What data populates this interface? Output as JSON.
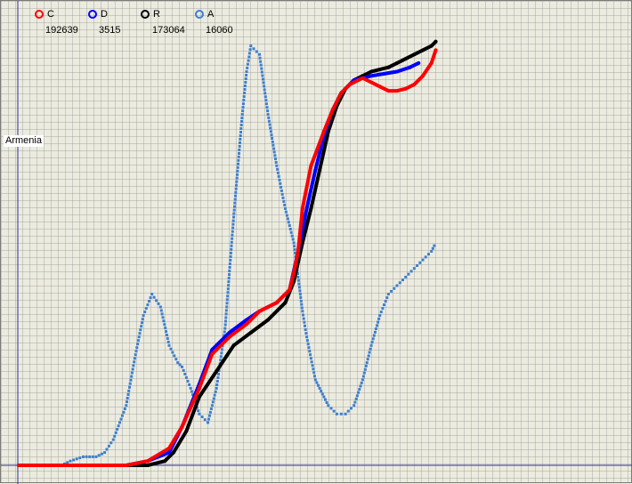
{
  "chart_data": {
    "type": "line",
    "country_label": "Armenia",
    "xlim": [
      0,
      100
    ],
    "ylim": [
      0,
      100
    ],
    "grid": true,
    "legend_placement": "top-left",
    "series": [
      {
        "name": "C",
        "value_label": "192639",
        "color": "#ff0000",
        "x": [
          0,
          12,
          25,
          30,
          35,
          38,
          42,
          45,
          49,
          53,
          56,
          60,
          63,
          64,
          65,
          66,
          68,
          71,
          73,
          75,
          77,
          79,
          80,
          82,
          84,
          86,
          88,
          90,
          92,
          94,
          96,
          97
        ],
        "y": [
          0,
          0,
          0,
          1,
          4,
          9,
          18,
          26,
          30,
          33,
          36,
          38,
          41,
          45,
          50,
          60,
          70,
          78,
          83,
          87,
          89,
          90,
          90.5,
          89.5,
          88.5,
          87.5,
          87.5,
          88,
          89,
          91,
          94,
          97
        ]
      },
      {
        "name": "D",
        "value_label": "3515",
        "color": "#0000ff",
        "x": [
          0,
          12,
          25,
          30,
          35,
          38,
          42,
          45,
          49,
          53,
          56,
          60,
          63,
          65,
          67,
          69,
          71,
          73,
          75,
          77,
          78,
          80,
          82,
          85,
          88,
          91,
          93
        ],
        "y": [
          0,
          0,
          0,
          1,
          3,
          9,
          19,
          27,
          31,
          34,
          36,
          38,
          41,
          50,
          60,
          69,
          77,
          83,
          87,
          89,
          90,
          90.5,
          91,
          91.5,
          92,
          93,
          94
        ]
      },
      {
        "name": "R",
        "value_label": "173064",
        "color": "#000000",
        "x": [
          0,
          12,
          25,
          30,
          34,
          36,
          39,
          42,
          46,
          50,
          54,
          58,
          62,
          64,
          66,
          68,
          70,
          72,
          74,
          76,
          78,
          80,
          82,
          84,
          86,
          88,
          90,
          92,
          94,
          96,
          97
        ],
        "y": [
          0,
          0,
          0,
          0,
          1,
          3,
          8,
          16,
          22,
          28,
          31,
          34,
          38,
          43,
          52,
          60,
          69,
          78,
          84,
          88,
          90,
          91,
          92,
          92.5,
          93,
          94,
          95,
          96,
          97,
          98,
          99
        ]
      },
      {
        "name": "A",
        "value_label": "16060",
        "color": "#3d7fcf",
        "x": [
          0,
          10,
          12,
          15,
          18,
          20,
          22,
          25,
          27,
          29,
          31,
          33,
          35,
          37,
          38,
          40,
          42,
          44,
          46,
          48,
          50,
          52,
          53,
          54,
          56,
          58,
          60,
          62,
          64,
          65,
          66,
          67,
          68,
          69,
          70,
          71,
          72,
          74,
          76,
          78,
          80,
          82,
          84,
          86,
          88,
          90,
          92,
          94,
          96,
          97
        ],
        "y": [
          0,
          0,
          1,
          2,
          2,
          3,
          6,
          14,
          25,
          35,
          40,
          37,
          28,
          24,
          23,
          18,
          12,
          10,
          18,
          32,
          58,
          82,
          92,
          98,
          96,
          82,
          70,
          60,
          52,
          44,
          36,
          30,
          25,
          20,
          18,
          16,
          14,
          12,
          12,
          14,
          20,
          28,
          35,
          40,
          42,
          44,
          46,
          48,
          50,
          52
        ]
      }
    ]
  }
}
